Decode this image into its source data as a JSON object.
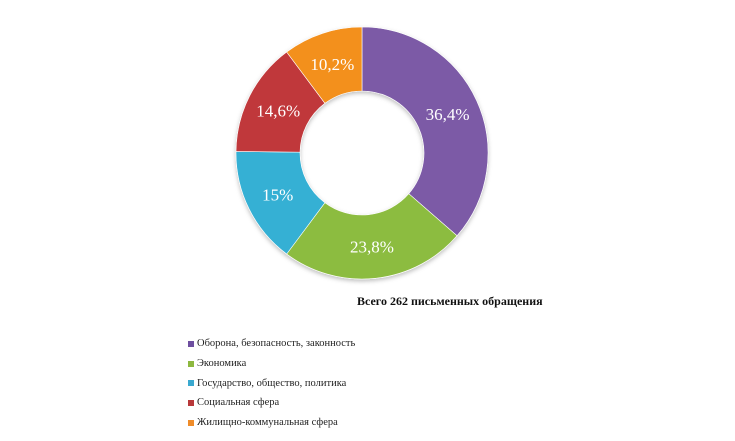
{
  "chart_data": {
    "type": "pie",
    "subtype": "donut",
    "title": "Всего 262 письменных обращения",
    "categories": [
      "Оборона, безопасность, законность",
      "Экономика",
      "Государство, общество, политика",
      "Социальная сфера",
      "Жилищно-коммунальная сфера"
    ],
    "values": [
      36.4,
      23.8,
      15,
      14.6,
      10.2
    ],
    "labels": [
      "36,4%",
      "23,8%",
      "15%",
      "14,6%",
      "10,2%"
    ],
    "colors": [
      "#7b5aa6",
      "#8cbc3f",
      "#35b0d4",
      "#c0393b",
      "#f3901f"
    ],
    "legend_position": "bottom-left",
    "total": 262
  },
  "title": "Всего 262 письменных обращения",
  "legend": [
    {
      "label": "Оборона, безопасность, законность",
      "color": "#6e4fa0"
    },
    {
      "label": "Экономика",
      "color": "#8db83f"
    },
    {
      "label": "Государство, общество, политика",
      "color": "#3aa9d0"
    },
    {
      "label": "Социальная сфера",
      "color": "#b8383a"
    },
    {
      "label": "Жилищно-коммунальная сфера",
      "color": "#ef8c2a"
    }
  ]
}
